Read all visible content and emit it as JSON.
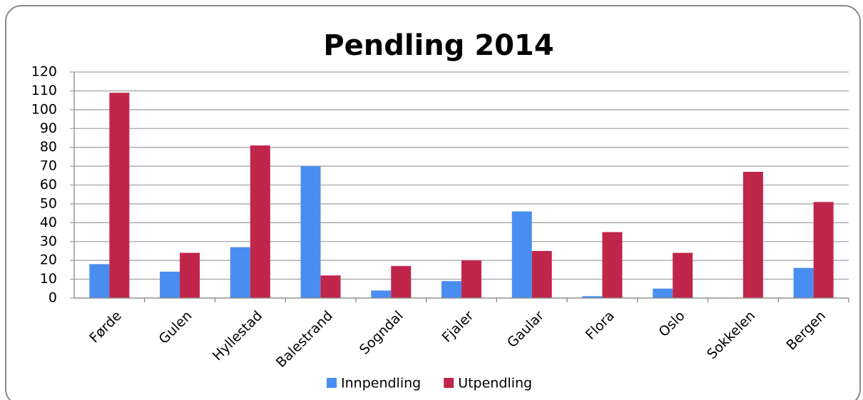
{
  "chart_data": {
    "type": "bar",
    "title": "Pendling 2014",
    "categories": [
      "Førde",
      "Gulen",
      "Hyllestad",
      "Balestrand",
      "Sogndal",
      "Fjaler",
      "Gaular",
      "Flora",
      "Oslo",
      "Sokkelen",
      "Bergen"
    ],
    "series": [
      {
        "name": "Innpendling",
        "color": "#4a8df0",
        "values": [
          18,
          14,
          27,
          70,
          4,
          9,
          46,
          1,
          5,
          0,
          16
        ]
      },
      {
        "name": "Utpendling",
        "color": "#c0264a",
        "values": [
          109,
          24,
          81,
          12,
          17,
          20,
          25,
          35,
          24,
          67,
          51
        ]
      }
    ],
    "ylim": [
      0,
      120
    ],
    "yticks": [
      0,
      10,
      20,
      30,
      40,
      50,
      60,
      70,
      80,
      90,
      100,
      110,
      120
    ],
    "grid": true,
    "legend": "bottom"
  }
}
